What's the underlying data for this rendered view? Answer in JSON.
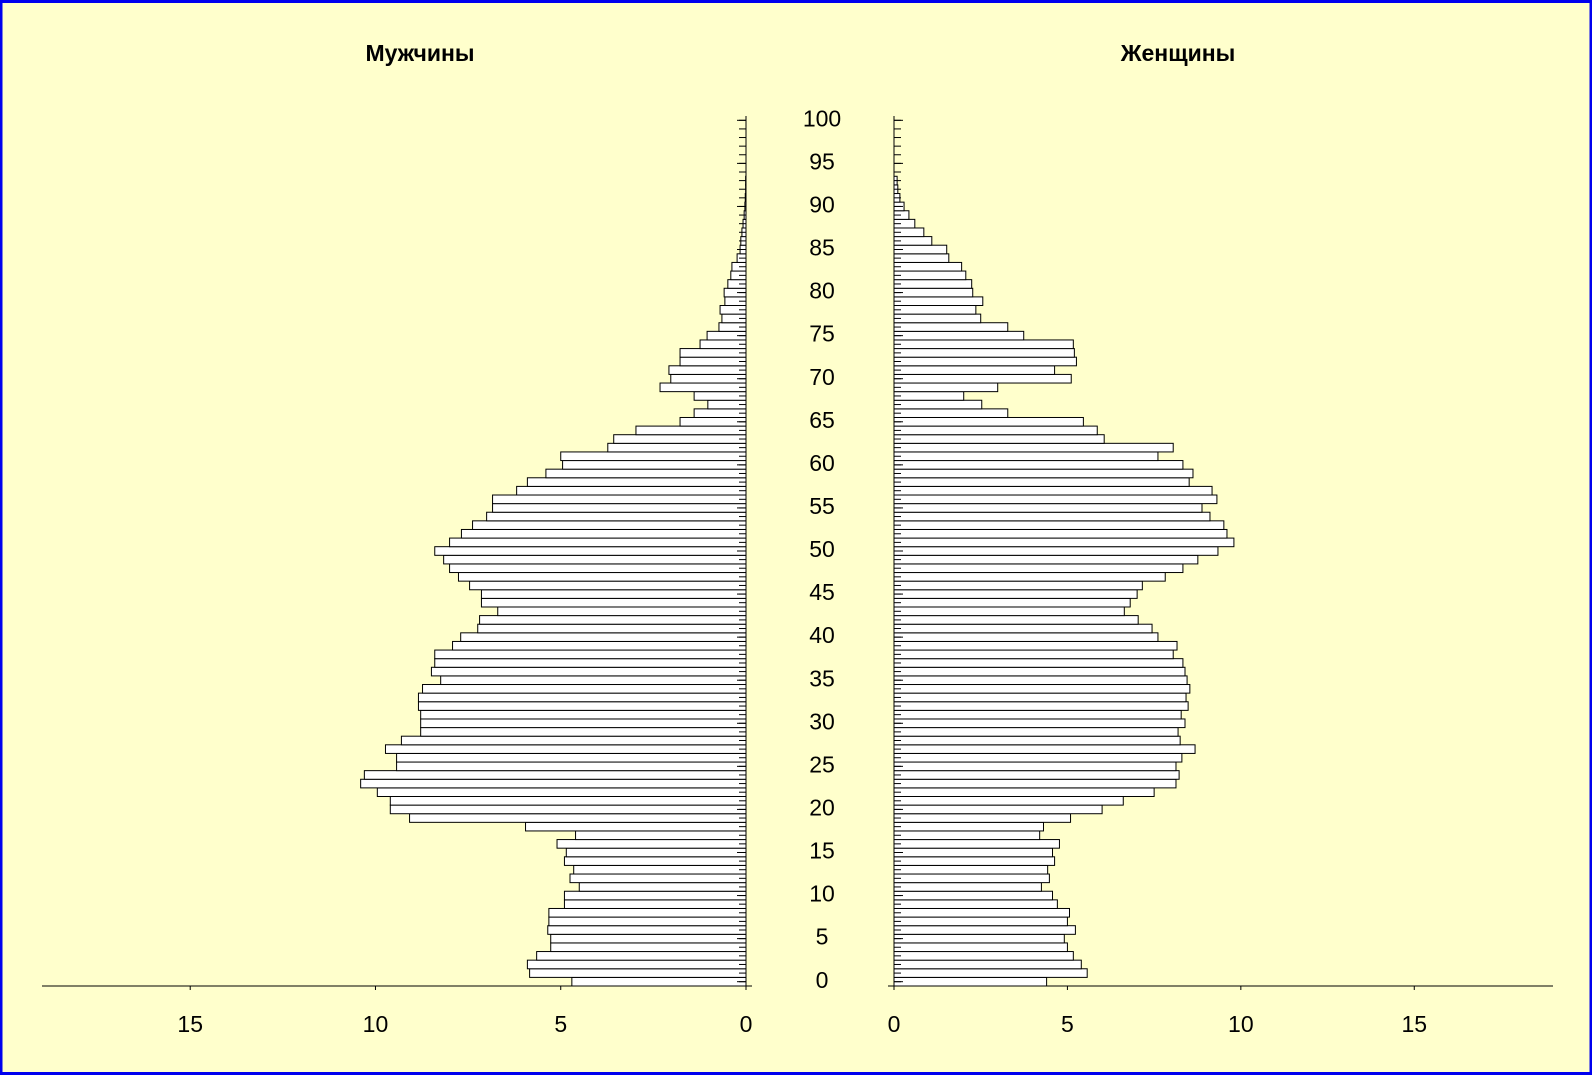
{
  "chart_data": [
    {
      "type": "barh",
      "title": "Мужчины",
      "x_inverted": true,
      "color": "#ffffff",
      "edge_color": "#000000",
      "y": [
        0,
        1,
        2,
        3,
        4,
        5,
        6,
        7,
        8,
        9,
        10,
        11,
        12,
        13,
        14,
        15,
        16,
        17,
        18,
        19,
        20,
        21,
        22,
        23,
        24,
        25,
        26,
        27,
        28,
        29,
        30,
        31,
        32,
        33,
        34,
        35,
        36,
        37,
        38,
        39,
        40,
        41,
        42,
        43,
        44,
        45,
        46,
        47,
        48,
        49,
        50,
        51,
        52,
        53,
        54,
        55,
        56,
        57,
        58,
        59,
        60,
        61,
        62,
        63,
        64,
        65,
        66,
        67,
        68,
        69,
        70,
        71,
        72,
        73,
        74,
        75,
        76,
        77,
        78,
        79,
        80,
        81,
        82,
        83,
        84,
        85,
        86,
        87,
        88,
        89,
        90,
        91,
        92,
        93,
        94,
        95,
        96,
        97,
        98,
        99,
        100
      ],
      "values": [
        4.7,
        5.84,
        5.9,
        5.65,
        5.27,
        5.27,
        5.35,
        5.32,
        5.32,
        4.9,
        4.9,
        4.5,
        4.75,
        4.65,
        4.9,
        4.85,
        5.1,
        4.6,
        5.95,
        9.08,
        9.6,
        9.6,
        9.95,
        10.4,
        10.3,
        9.43,
        9.43,
        9.73,
        9.3,
        8.78,
        8.78,
        8.78,
        8.84,
        8.84,
        8.73,
        8.24,
        8.49,
        8.4,
        8.4,
        7.92,
        7.7,
        7.24,
        7.19,
        6.7,
        7.14,
        7.14,
        7.46,
        7.76,
        8.0,
        8.16,
        8.4,
        8.0,
        7.68,
        7.38,
        7.0,
        6.84,
        6.84,
        6.19,
        5.9,
        5.4,
        4.95,
        5.0,
        3.73,
        3.57,
        2.97,
        1.78,
        1.4,
        1.03,
        1.4,
        2.32,
        2.03,
        2.08,
        1.78,
        1.78,
        1.24,
        1.05,
        0.73,
        0.65,
        0.7,
        0.57,
        0.59,
        0.49,
        0.41,
        0.38,
        0.24,
        0.16,
        0.14,
        0.11,
        0.08,
        0.05,
        0.03,
        0.02,
        0.01,
        0.01,
        0,
        0,
        0,
        0,
        0,
        0,
        0
      ],
      "xlim": [
        0,
        19
      ],
      "xticks": [
        0,
        5,
        10,
        15
      ],
      "ylim": [
        -0.5,
        100.5
      ],
      "yticks": [
        0,
        5,
        10,
        15,
        20,
        25,
        30,
        35,
        40,
        45,
        50,
        55,
        60,
        65,
        70,
        75,
        80,
        85,
        90,
        95,
        100
      ]
    },
    {
      "type": "barh",
      "title": "Женщины",
      "x_inverted": false,
      "color": "#ffffff",
      "edge_color": "#000000",
      "y": [
        0,
        1,
        2,
        3,
        4,
        5,
        6,
        7,
        8,
        9,
        10,
        11,
        12,
        13,
        14,
        15,
        16,
        17,
        18,
        19,
        20,
        21,
        22,
        23,
        24,
        25,
        26,
        27,
        28,
        29,
        30,
        31,
        32,
        33,
        34,
        35,
        36,
        37,
        38,
        39,
        40,
        41,
        42,
        43,
        44,
        45,
        46,
        47,
        48,
        49,
        50,
        51,
        52,
        53,
        54,
        55,
        56,
        57,
        58,
        59,
        60,
        61,
        62,
        63,
        64,
        65,
        66,
        67,
        68,
        69,
        70,
        71,
        72,
        73,
        74,
        75,
        76,
        77,
        78,
        79,
        80,
        81,
        82,
        83,
        84,
        85,
        86,
        87,
        88,
        89,
        90,
        91,
        92,
        93,
        94,
        95,
        96,
        97,
        98,
        99,
        100
      ],
      "values": [
        4.4,
        5.57,
        5.4,
        5.17,
        5.0,
        4.91,
        5.23,
        5.0,
        5.06,
        4.71,
        4.57,
        4.25,
        4.48,
        4.43,
        4.63,
        4.57,
        4.77,
        4.2,
        4.31,
        5.09,
        6.0,
        6.61,
        7.5,
        8.13,
        8.22,
        8.13,
        8.3,
        8.68,
        8.25,
        8.19,
        8.39,
        8.28,
        8.48,
        8.42,
        8.53,
        8.45,
        8.39,
        8.33,
        8.05,
        8.16,
        7.61,
        7.44,
        7.04,
        6.64,
        6.81,
        7.01,
        7.16,
        7.82,
        8.33,
        8.76,
        9.34,
        9.8,
        9.6,
        9.51,
        9.11,
        8.88,
        9.31,
        9.17,
        8.51,
        8.62,
        8.33,
        7.61,
        8.05,
        6.06,
        5.86,
        5.46,
        3.28,
        2.53,
        2.01,
        2.99,
        5.11,
        4.63,
        5.26,
        5.2,
        5.17,
        3.74,
        3.28,
        2.5,
        2.36,
        2.56,
        2.27,
        2.24,
        2.07,
        1.95,
        1.58,
        1.52,
        1.09,
        0.86,
        0.6,
        0.43,
        0.29,
        0.17,
        0.11,
        0.09,
        0,
        0,
        0,
        0,
        0,
        0,
        0
      ],
      "xlim": [
        0,
        19
      ],
      "xticks": [
        0,
        5,
        10,
        15
      ],
      "ylim": [
        -0.5,
        100.5
      ],
      "yticks": [
        0,
        5,
        10,
        15,
        20,
        25,
        30,
        35,
        40,
        45,
        50,
        55,
        60,
        65,
        70,
        75,
        80,
        85,
        90,
        95,
        100
      ]
    }
  ]
}
